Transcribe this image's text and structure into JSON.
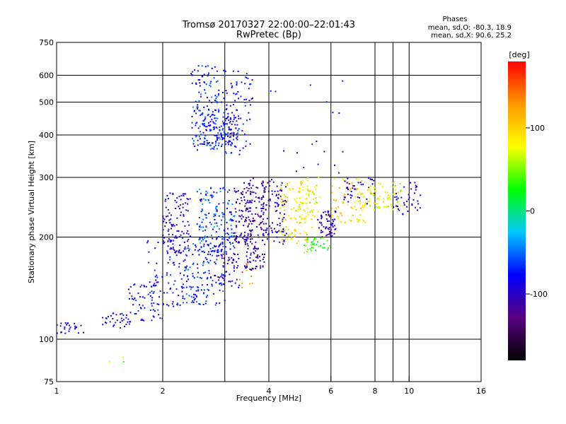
{
  "chart_data": {
    "type": "scatter",
    "title": "Tromsø 20170327 22:00:00–22:01:43",
    "subtitle": "RwPretec (Bp)",
    "xlabel": "Frequency [MHz]",
    "ylabel": "Stationary phase Virtual Height [km]",
    "x_scale": "log",
    "y_scale": "log",
    "xlim": [
      1,
      16
    ],
    "ylim": [
      75,
      750
    ],
    "x_ticks": [
      1,
      2,
      4,
      6,
      8,
      10,
      16
    ],
    "x_tick_labels": [
      "1",
      "2",
      "4",
      "6",
      "8",
      "10",
      "16"
    ],
    "x_gridlines": [
      2,
      3,
      4,
      6,
      8,
      9,
      10
    ],
    "y_ticks": [
      75,
      100,
      200,
      300,
      400,
      500,
      600,
      750
    ],
    "y_tick_labels": [
      "75",
      "100",
      "200",
      "300",
      "400",
      "500",
      "600",
      "750"
    ],
    "y_gridlines": [
      100,
      200,
      300,
      400,
      500,
      600
    ],
    "grid": true,
    "stats": {
      "header": "Phases",
      "line_o": "mean, sd,O: -80.3, 18.9",
      "line_x": "mean, sd,X:  90.6, 25.2"
    },
    "colorbar": {
      "label": "[deg]",
      "min": -180,
      "max": 180,
      "ticks": [
        100,
        0,
        -100
      ],
      "tick_labels": [
        "100",
        "0",
        "-100"
      ],
      "colors": [
        "#000000",
        "#5a0080",
        "#0000ff",
        "#00c8ff",
        "#00ff00",
        "#ffff00",
        "#ff9900",
        "#ff0000"
      ]
    },
    "clusters": [
      {
        "f": [
          1.0,
          1.2
        ],
        "h": [
          104,
          112
        ],
        "phase": -95,
        "n": 25
      },
      {
        "f": [
          1.35,
          1.65
        ],
        "h": [
          108,
          120
        ],
        "phase": -90,
        "n": 35
      },
      {
        "f": [
          1.6,
          2.0
        ],
        "h": [
          112,
          150
        ],
        "phase": -85,
        "n": 60
      },
      {
        "f": [
          1.8,
          2.3
        ],
        "h": [
          125,
          200
        ],
        "phase": -80,
        "n": 90
      },
      {
        "f": [
          2.0,
          2.4
        ],
        "h": [
          180,
          270
        ],
        "phase": -100,
        "n": 100
      },
      {
        "f": [
          2.3,
          3.0
        ],
        "h": [
          125,
          200
        ],
        "phase": -70,
        "n": 140
      },
      {
        "f": [
          2.5,
          3.2
        ],
        "h": [
          180,
          280
        ],
        "phase": -60,
        "n": 160
      },
      {
        "f": [
          2.8,
          3.3
        ],
        "h": [
          140,
          200
        ],
        "phase": -105,
        "n": 80
      },
      {
        "f": [
          3.2,
          3.6
        ],
        "h": [
          190,
          280
        ],
        "phase": -110,
        "n": 80
      },
      {
        "f": [
          3.4,
          3.9
        ],
        "h": [
          160,
          300
        ],
        "phase": -115,
        "n": 140
      },
      {
        "f": [
          3.8,
          4.5
        ],
        "h": [
          190,
          300
        ],
        "phase": -110,
        "n": 110
      },
      {
        "f": [
          4.3,
          5.2
        ],
        "h": [
          190,
          290
        ],
        "phase": 90,
        "n": 100
      },
      {
        "f": [
          4.8,
          5.6
        ],
        "h": [
          210,
          300
        ],
        "phase": 80,
        "n": 60
      },
      {
        "f": [
          5.0,
          6.0
        ],
        "h": [
          180,
          200
        ],
        "phase": 30,
        "n": 40
      },
      {
        "f": [
          5.5,
          6.2
        ],
        "h": [
          200,
          240
        ],
        "phase": -105,
        "n": 60
      },
      {
        "f": [
          6.0,
          7.5
        ],
        "h": [
          220,
          300
        ],
        "phase": 95,
        "n": 80
      },
      {
        "f": [
          6.5,
          8.0
        ],
        "h": [
          250,
          300
        ],
        "phase": -100,
        "n": 40
      },
      {
        "f": [
          7.5,
          9.5
        ],
        "h": [
          240,
          290
        ],
        "phase": 75,
        "n": 70
      },
      {
        "f": [
          9.0,
          10.8
        ],
        "h": [
          230,
          290
        ],
        "phase": -100,
        "n": 40
      },
      {
        "f": [
          2.4,
          3.0
        ],
        "h": [
          360,
          640
        ],
        "phase": -70,
        "n": 150
      },
      {
        "f": [
          2.6,
          3.3
        ],
        "h": [
          370,
          480
        ],
        "phase": -85,
        "n": 120
      },
      {
        "f": [
          3.0,
          3.6
        ],
        "h": [
          350,
          620
        ],
        "phase": -80,
        "n": 80
      },
      {
        "f": [
          3.3,
          3.6
        ],
        "h": [
          140,
          170
        ],
        "phase": 140,
        "n": 10
      },
      {
        "f": [
          4.0,
          6.5
        ],
        "h": [
          300,
          620
        ],
        "phase": -90,
        "n": 18
      },
      {
        "f": [
          1.4,
          1.6
        ],
        "h": [
          85,
          90
        ],
        "phase": 60,
        "n": 3
      }
    ]
  }
}
